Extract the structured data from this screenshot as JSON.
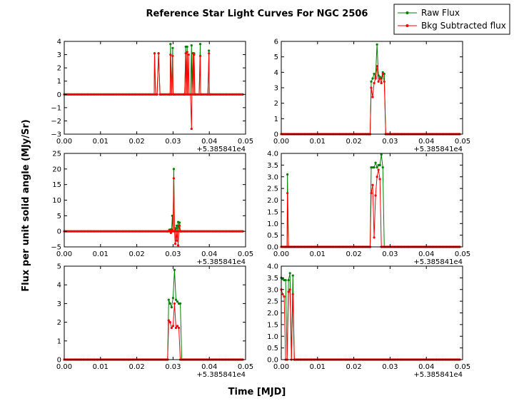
{
  "figure": {
    "title": "Reference Star Light Curves For NGC 2506",
    "xlabel": "Time [MJD]",
    "ylabel": "Flux per unit solid angle (MJy/Sr)",
    "x_offset_label": "+5.385841e4"
  },
  "legend": {
    "placement": "top-right",
    "entries": [
      {
        "label": "Raw Flux",
        "color": "#008000"
      },
      {
        "label": "Bkg Subtracted flux",
        "color": "#ff0000"
      }
    ]
  },
  "chart_data": [
    {
      "type": "line",
      "xlim": [
        0,
        0.05
      ],
      "ylim": [
        -3,
        4
      ],
      "xticks": [
        "0.00",
        "0.01",
        "0.02",
        "0.03",
        "0.04",
        "0.05"
      ],
      "yticks": [
        "−3",
        "−2",
        "−1",
        "0",
        "1",
        "2",
        "3",
        "4"
      ],
      "series": [
        {
          "name": "Raw Flux",
          "color": "#008000",
          "points": [
            [
              0.0249,
              3.1
            ],
            [
              0.0255,
              0
            ],
            [
              0.026,
              3.1
            ],
            [
              0.0265,
              0
            ],
            [
              0.029,
              0
            ],
            [
              0.0293,
              3.8
            ],
            [
              0.0296,
              0
            ],
            [
              0.0299,
              3.5
            ],
            [
              0.0302,
              0
            ],
            [
              0.033,
              0
            ],
            [
              0.0335,
              3.6
            ],
            [
              0.0339,
              3.6
            ],
            [
              0.0343,
              0
            ],
            [
              0.0351,
              3.7
            ],
            [
              0.0355,
              3.1
            ],
            [
              0.0358,
              3.1
            ],
            [
              0.0362,
              0
            ],
            [
              0.0375,
              3.8
            ],
            [
              0.0378,
              0
            ],
            [
              0.0395,
              0
            ],
            [
              0.0399,
              3.3
            ],
            [
              0.0403,
              0
            ]
          ]
        },
        {
          "name": "Bkg Subtracted flux",
          "color": "#ff0000",
          "points": [
            [
              0.0249,
              3.1
            ],
            [
              0.0255,
              0
            ],
            [
              0.026,
              3.1
            ],
            [
              0.0265,
              0
            ],
            [
              0.029,
              0
            ],
            [
              0.0293,
              3.0
            ],
            [
              0.0296,
              0
            ],
            [
              0.0299,
              2.9
            ],
            [
              0.0302,
              0
            ],
            [
              0.033,
              0
            ],
            [
              0.0335,
              3.1
            ],
            [
              0.0339,
              3.2
            ],
            [
              0.0343,
              3.0
            ],
            [
              0.0351,
              -2.6
            ],
            [
              0.0355,
              3.1
            ],
            [
              0.0358,
              3.0
            ],
            [
              0.0362,
              0
            ],
            [
              0.0375,
              2.9
            ],
            [
              0.0378,
              0
            ],
            [
              0.0395,
              0
            ],
            [
              0.0399,
              3.1
            ],
            [
              0.0403,
              0
            ]
          ]
        }
      ]
    },
    {
      "type": "line",
      "xlim": [
        0,
        0.05
      ],
      "ylim": [
        0,
        6
      ],
      "xticks": [
        "0.00",
        "0.01",
        "0.02",
        "0.03",
        "0.04",
        "0.05"
      ],
      "yticks": [
        "0",
        "1",
        "2",
        "3",
        "4",
        "5",
        "6"
      ],
      "series": [
        {
          "name": "Raw Flux",
          "color": "#008000",
          "points": [
            [
              0.0245,
              0
            ],
            [
              0.0248,
              3.4
            ],
            [
              0.0252,
              3.6
            ],
            [
              0.0256,
              3.9
            ],
            [
              0.026,
              3.7
            ],
            [
              0.0264,
              5.8
            ],
            [
              0.0268,
              3.8
            ],
            [
              0.0272,
              3.7
            ],
            [
              0.0276,
              3.6
            ],
            [
              0.028,
              4.0
            ],
            [
              0.0284,
              3.9
            ],
            [
              0.0288,
              0
            ]
          ]
        },
        {
          "name": "Bkg Subtracted flux",
          "color": "#ff0000",
          "points": [
            [
              0.0245,
              0
            ],
            [
              0.0248,
              3.0
            ],
            [
              0.0252,
              2.4
            ],
            [
              0.0256,
              3.3
            ],
            [
              0.026,
              3.6
            ],
            [
              0.0264,
              4.4
            ],
            [
              0.0268,
              3.4
            ],
            [
              0.0272,
              3.6
            ],
            [
              0.0276,
              3.3
            ],
            [
              0.028,
              3.9
            ],
            [
              0.0284,
              3.4
            ],
            [
              0.0288,
              0
            ]
          ]
        }
      ]
    },
    {
      "type": "line",
      "xlim": [
        0,
        0.05
      ],
      "ylim": [
        -5,
        25
      ],
      "xticks": [
        "0.00",
        "0.01",
        "0.02",
        "0.03",
        "0.04",
        "0.05"
      ],
      "yticks": [
        "−5",
        "0",
        "5",
        "10",
        "15",
        "20",
        "25"
      ],
      "series": [
        {
          "name": "Raw Flux",
          "color": "#008000",
          "points": [
            [
              0.0285,
              0
            ],
            [
              0.029,
              0.5
            ],
            [
              0.0294,
              0.6
            ],
            [
              0.0298,
              5.0
            ],
            [
              0.0302,
              20.0
            ],
            [
              0.0306,
              1.0
            ],
            [
              0.031,
              1.8
            ],
            [
              0.0314,
              3.0
            ],
            [
              0.0318,
              2.8
            ],
            [
              0.0322,
              0
            ]
          ]
        },
        {
          "name": "Bkg Subtracted flux",
          "color": "#ff0000",
          "points": [
            [
              0.0285,
              0
            ],
            [
              0.029,
              0.3
            ],
            [
              0.0294,
              -0.5
            ],
            [
              0.0298,
              0.5
            ],
            [
              0.0302,
              17.0
            ],
            [
              0.0306,
              -4.0
            ],
            [
              0.031,
              -3.0
            ],
            [
              0.0314,
              -4.5
            ],
            [
              0.0318,
              1.8
            ],
            [
              0.0322,
              0
            ]
          ]
        }
      ]
    },
    {
      "type": "line",
      "xlim": [
        0,
        0.05
      ],
      "ylim": [
        0,
        4
      ],
      "xticks": [
        "0.00",
        "0.01",
        "0.02",
        "0.03",
        "0.04",
        "0.05"
      ],
      "yticks": [
        "0.0",
        "0.5",
        "1.0",
        "1.5",
        "2.0",
        "2.5",
        "3.0",
        "3.5",
        "4.0"
      ],
      "series": [
        {
          "name": "Raw Flux",
          "color": "#008000",
          "points": [
            [
              0.0013,
              0
            ],
            [
              0.0017,
              3.1
            ],
            [
              0.0021,
              0
            ],
            [
              0.0245,
              0
            ],
            [
              0.0248,
              3.4
            ],
            [
              0.0252,
              3.4
            ],
            [
              0.0256,
              3.4
            ],
            [
              0.026,
              3.6
            ],
            [
              0.0264,
              3.4
            ],
            [
              0.0268,
              3.5
            ],
            [
              0.0272,
              3.5
            ],
            [
              0.0276,
              3.95
            ],
            [
              0.028,
              3.4
            ],
            [
              0.0284,
              0
            ]
          ]
        },
        {
          "name": "Bkg Subtracted flux",
          "color": "#ff0000",
          "points": [
            [
              0.0013,
              0
            ],
            [
              0.0017,
              2.3
            ],
            [
              0.0021,
              0
            ],
            [
              0.0245,
              0
            ],
            [
              0.0248,
              2.3
            ],
            [
              0.0252,
              2.65
            ],
            [
              0.0256,
              0.4
            ],
            [
              0.026,
              2.2
            ],
            [
              0.0264,
              3.0
            ],
            [
              0.0268,
              3.3
            ],
            [
              0.0272,
              2.9
            ],
            [
              0.0284,
              0
            ]
          ]
        }
      ]
    },
    {
      "type": "line",
      "xlim": [
        0,
        0.05
      ],
      "ylim": [
        0,
        5
      ],
      "xticks": [
        "0.00",
        "0.01",
        "0.02",
        "0.03",
        "0.04",
        "0.05"
      ],
      "yticks": [
        "0",
        "1",
        "2",
        "3",
        "4",
        "5"
      ],
      "series": [
        {
          "name": "Raw Flux",
          "color": "#008000",
          "points": [
            [
              0.0285,
              0
            ],
            [
              0.0288,
              3.2
            ],
            [
              0.0292,
              3.0
            ],
            [
              0.0296,
              2.8
            ],
            [
              0.03,
              3.3
            ],
            [
              0.0304,
              4.8
            ],
            [
              0.0308,
              3.2
            ],
            [
              0.0312,
              3.1
            ],
            [
              0.0316,
              3.0
            ],
            [
              0.032,
              3.0
            ],
            [
              0.0328,
              0
            ]
          ]
        },
        {
          "name": "Bkg Subtracted flux",
          "color": "#ff0000",
          "points": [
            [
              0.0285,
              0
            ],
            [
              0.0288,
              2.1
            ],
            [
              0.0292,
              2.0
            ],
            [
              0.0296,
              1.7
            ],
            [
              0.03,
              1.8
            ],
            [
              0.0304,
              3.0
            ],
            [
              0.0308,
              1.7
            ],
            [
              0.0312,
              1.8
            ],
            [
              0.0316,
              1.7
            ],
            [
              0.0328,
              0
            ]
          ]
        }
      ]
    },
    {
      "type": "line",
      "xlim": [
        0,
        0.05
      ],
      "ylim": [
        0,
        4
      ],
      "xticks": [
        "0.00",
        "0.01",
        "0.02",
        "0.03",
        "0.04",
        "0.05"
      ],
      "yticks": [
        "0.0",
        "0.5",
        "1.0",
        "1.5",
        "2.0",
        "2.5",
        "3.0",
        "3.5",
        "4.0"
      ],
      "series": [
        {
          "name": "Raw Flux",
          "color": "#008000",
          "points": [
            [
              0,
              3.5
            ],
            [
              0.0004,
              3.45
            ],
            [
              0.0008,
              3.4
            ],
            [
              0.0012,
              3.4
            ],
            [
              0.0016,
              0
            ],
            [
              0.002,
              3.4
            ],
            [
              0.0024,
              3.7
            ],
            [
              0.0028,
              0
            ],
            [
              0.0032,
              3.6
            ],
            [
              0.0036,
              0
            ]
          ]
        },
        {
          "name": "Bkg Subtracted flux",
          "color": "#ff0000",
          "points": [
            [
              0,
              3.0
            ],
            [
              0.0004,
              2.8
            ],
            [
              0.0008,
              2.7
            ],
            [
              0.0012,
              0
            ],
            [
              0.0016,
              0
            ],
            [
              0.002,
              2.9
            ],
            [
              0.0024,
              3.0
            ],
            [
              0.0028,
              0
            ],
            [
              0.0032,
              2.8
            ],
            [
              0.0036,
              0
            ]
          ]
        }
      ]
    }
  ]
}
